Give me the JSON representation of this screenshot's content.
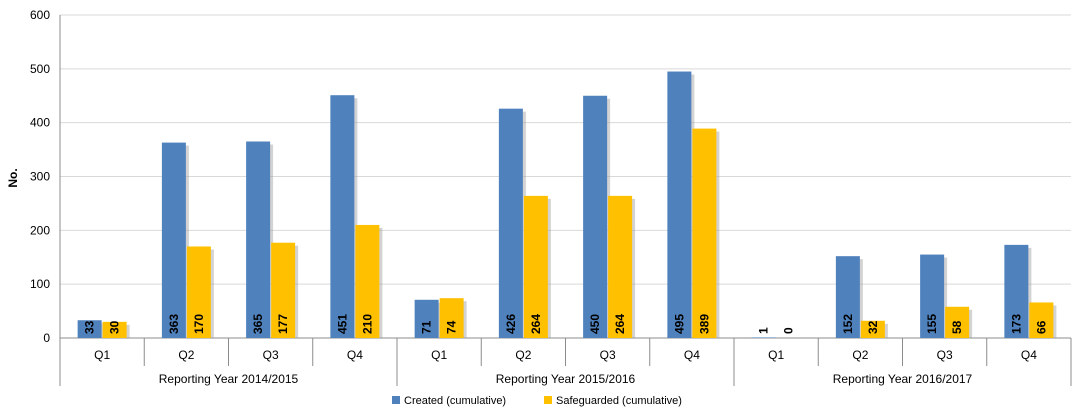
{
  "chart_data": {
    "type": "bar",
    "ylabel": "No.",
    "ylim": [
      0,
      600
    ],
    "yticks": [
      0,
      100,
      200,
      300,
      400,
      500,
      600
    ],
    "grid": true,
    "legend_position": "bottom",
    "groups": [
      {
        "label": "Reporting Year 2014/2015",
        "categories": [
          "Q1",
          "Q2",
          "Q3",
          "Q4"
        ]
      },
      {
        "label": "Reporting Year 2015/2016",
        "categories": [
          "Q1",
          "Q2",
          "Q3",
          "Q4"
        ]
      },
      {
        "label": "Reporting Year 2016/2017",
        "categories": [
          "Q1",
          "Q2",
          "Q3",
          "Q4"
        ]
      }
    ],
    "series": [
      {
        "name": "Created (cumulative)",
        "color": "#4f81bd",
        "values": [
          33,
          363,
          365,
          451,
          71,
          426,
          450,
          495,
          1,
          152,
          155,
          173
        ]
      },
      {
        "name": "Safeguarded (cumulative)",
        "color": "#ffc000",
        "values": [
          30,
          170,
          177,
          210,
          74,
          264,
          264,
          389,
          0,
          32,
          58,
          66
        ]
      }
    ]
  }
}
